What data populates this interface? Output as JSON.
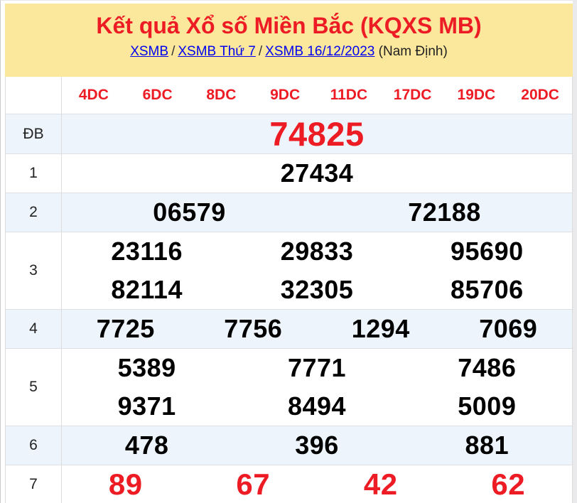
{
  "header": {
    "title": "Kết quả Xổ số Miền Bắc (KQXS MB)",
    "breadcrumb": {
      "items": [
        "XSMB",
        "XSMB Thứ 7",
        "XSMB 16/12/2023"
      ],
      "separator": "/",
      "suffix": "(Nam Định)"
    }
  },
  "table": {
    "column_headers": [
      "4DC",
      "6DC",
      "8DC",
      "9DC",
      "11DC",
      "17DC",
      "19DC",
      "20DC"
    ],
    "rows": [
      {
        "label": "ĐB",
        "style": "db",
        "shade": true,
        "lines": [
          [
            "74825"
          ]
        ]
      },
      {
        "label": "1",
        "style": "",
        "shade": false,
        "lines": [
          [
            "27434"
          ]
        ]
      },
      {
        "label": "2",
        "style": "",
        "shade": true,
        "lines": [
          [
            "06579",
            "72188"
          ]
        ]
      },
      {
        "label": "3",
        "style": "",
        "shade": false,
        "lines": [
          [
            "23116",
            "29833",
            "95690"
          ],
          [
            "82114",
            "32305",
            "85706"
          ]
        ]
      },
      {
        "label": "4",
        "style": "",
        "shade": true,
        "lines": [
          [
            "7725",
            "7756",
            "1294",
            "7069"
          ]
        ]
      },
      {
        "label": "5",
        "style": "",
        "shade": false,
        "lines": [
          [
            "5389",
            "7771",
            "7486"
          ],
          [
            "9371",
            "8494",
            "5009"
          ]
        ]
      },
      {
        "label": "6",
        "style": "",
        "shade": true,
        "lines": [
          [
            "478",
            "396",
            "881"
          ]
        ]
      },
      {
        "label": "7",
        "style": "g7",
        "shade": false,
        "lines": [
          [
            "89",
            "67",
            "42",
            "62"
          ]
        ]
      }
    ]
  },
  "colors": {
    "accent_red": "#ED1C24",
    "banner_yellow": "#FBE89D",
    "row_shade_blue": "#EDF4FB",
    "link_blue": "#0000EE",
    "number_black": "#000000",
    "border_gray": "#DCDCDC"
  }
}
